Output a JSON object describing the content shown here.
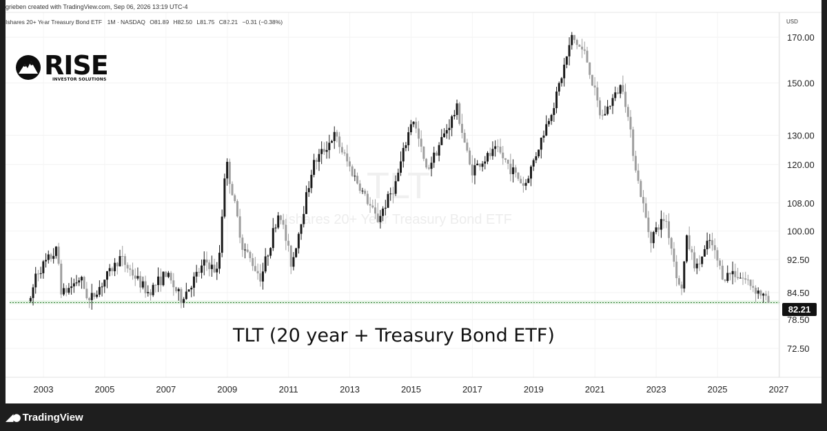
{
  "header": {
    "created_line": "grieben created with TradingView.com, Sep 06, 2026 13:19 UTC-4",
    "symbol_line": "Ishares 20+ Year Treasury Bond ETF · 1M · NASDAQ",
    "ohlc": [
      "O81.89",
      "H82.50",
      "L81.75",
      "C82.21",
      "−0.31 (−0.38%)"
    ],
    "currency": "USD"
  },
  "logo": {
    "word": "RISE",
    "sub": "INVESTOR SOLUTIONS"
  },
  "watermark": {
    "ticker": "TLT",
    "name": "Ishares 20+ Year Treasury Bond ETF"
  },
  "caption": "TLT (20 year + Treasury Bond ETF)",
  "last_price_label": "82.21",
  "footer": {
    "brand": "TradingView"
  },
  "colors": {
    "up": "#1a1a1a",
    "down": "#9e9e9e",
    "support_line": "#2e7d32",
    "background": "#ffffff"
  },
  "chart_data": {
    "type": "candlestick",
    "interval": "1M",
    "scale": "log",
    "ylim": [
      67,
      182
    ],
    "y_ticks": [
      "170.00",
      "150.00",
      "130.00",
      "120.00",
      "108.00",
      "100.00",
      "92.50",
      "84.50",
      "78.50",
      "72.50"
    ],
    "x_ticks": [
      "2003",
      "2005",
      "2007",
      "2009",
      "2011",
      "2013",
      "2015",
      "2017",
      "2019",
      "2021",
      "2023",
      "2025",
      "2027"
    ],
    "support_level": 82.2,
    "last_close": 82.21,
    "series": [
      {
        "t": 2002.58,
        "v": 82.5
      },
      {
        "t": 2002.75,
        "v": 89.0
      },
      {
        "t": 2003.45,
        "v": 95.0
      },
      {
        "t": 2003.6,
        "v": 84.0
      },
      {
        "t": 2004.2,
        "v": 88.0
      },
      {
        "t": 2004.5,
        "v": 82.5
      },
      {
        "t": 2005.5,
        "v": 93.0
      },
      {
        "t": 2006.4,
        "v": 84.5
      },
      {
        "t": 2007.0,
        "v": 89.0
      },
      {
        "t": 2007.5,
        "v": 83.0
      },
      {
        "t": 2008.3,
        "v": 92.0
      },
      {
        "t": 2008.7,
        "v": 89.0
      },
      {
        "t": 2008.95,
        "v": 122.0
      },
      {
        "t": 2009.5,
        "v": 96.0
      },
      {
        "t": 2010.1,
        "v": 88.0
      },
      {
        "t": 2010.7,
        "v": 106.0
      },
      {
        "t": 2011.1,
        "v": 91.0
      },
      {
        "t": 2011.8,
        "v": 120.0
      },
      {
        "t": 2012.5,
        "v": 130.0
      },
      {
        "t": 2013.0,
        "v": 119.0
      },
      {
        "t": 2013.9,
        "v": 103.0
      },
      {
        "t": 2014.5,
        "v": 114.0
      },
      {
        "t": 2015.05,
        "v": 137.0
      },
      {
        "t": 2015.5,
        "v": 118.0
      },
      {
        "t": 2016.5,
        "v": 140.0
      },
      {
        "t": 2016.95,
        "v": 118.0
      },
      {
        "t": 2017.8,
        "v": 125.0
      },
      {
        "t": 2018.7,
        "v": 113.0
      },
      {
        "t": 2019.7,
        "v": 143.0
      },
      {
        "t": 2020.25,
        "v": 170.0
      },
      {
        "t": 2020.7,
        "v": 162.0
      },
      {
        "t": 2021.2,
        "v": 136.0
      },
      {
        "t": 2021.9,
        "v": 150.0
      },
      {
        "t": 2022.4,
        "v": 115.0
      },
      {
        "t": 2022.8,
        "v": 98.0
      },
      {
        "t": 2023.3,
        "v": 104.0
      },
      {
        "t": 2023.8,
        "v": 84.0
      },
      {
        "t": 2024.0,
        "v": 98.0
      },
      {
        "t": 2024.3,
        "v": 90.0
      },
      {
        "t": 2024.75,
        "v": 97.5
      },
      {
        "t": 2025.2,
        "v": 88.0
      },
      {
        "t": 2025.5,
        "v": 89.5
      },
      {
        "t": 2026.0,
        "v": 87.0
      },
      {
        "t": 2026.45,
        "v": 84.0
      },
      {
        "t": 2026.67,
        "v": 82.21
      }
    ]
  }
}
